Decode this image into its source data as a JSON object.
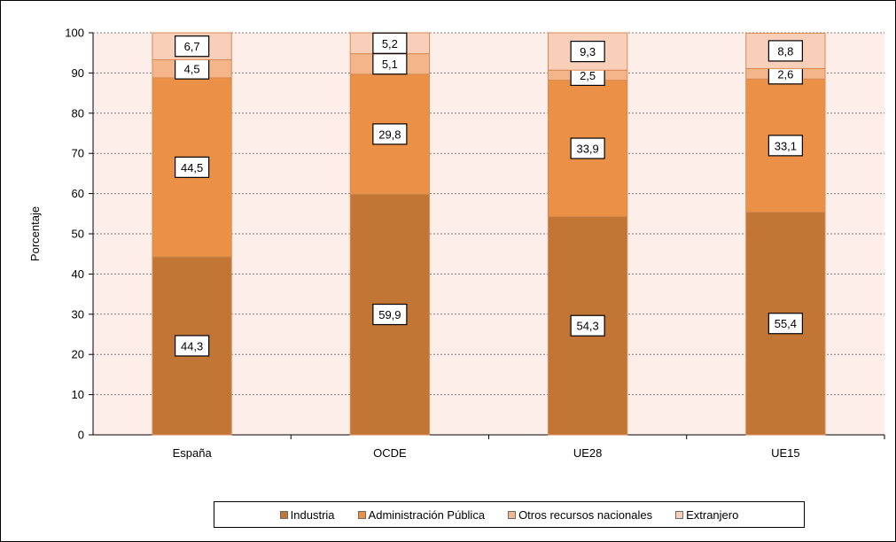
{
  "chart_data": {
    "type": "bar",
    "stacked": true,
    "categories": [
      "España",
      "OCDE",
      "UE28",
      "UE15"
    ],
    "series": [
      {
        "name": "Industria",
        "values": [
          44.3,
          59.9,
          54.3,
          55.4
        ],
        "color": "#c27636"
      },
      {
        "name": "Administración Pública",
        "values": [
          44.5,
          29.8,
          33.9,
          33.1
        ],
        "color": "#eb9147"
      },
      {
        "name": "Otros recursos nacionales",
        "values": [
          4.5,
          5.1,
          2.5,
          2.6
        ],
        "color": "#f3b589"
      },
      {
        "name": "Extranjero",
        "values": [
          6.7,
          5.2,
          9.3,
          8.8
        ],
        "color": "#f8cfb8"
      }
    ],
    "labels": [
      [
        "44,3",
        "59,9",
        "54,3",
        "55,4"
      ],
      [
        "44,5",
        "29,8",
        "33,9",
        "33,1"
      ],
      [
        "4,5",
        "5,1",
        "2,5",
        "2,6"
      ],
      [
        "6,7",
        "5,2",
        "9,3",
        "8,8"
      ]
    ],
    "ylabel": "Porcentaje",
    "xlabel": "",
    "ylim": [
      0,
      100
    ],
    "yticks": [
      0,
      10,
      20,
      30,
      40,
      50,
      60,
      70,
      80,
      90,
      100
    ],
    "grid": true,
    "plot_background": "#fdeee9",
    "legend_position": "bottom"
  }
}
